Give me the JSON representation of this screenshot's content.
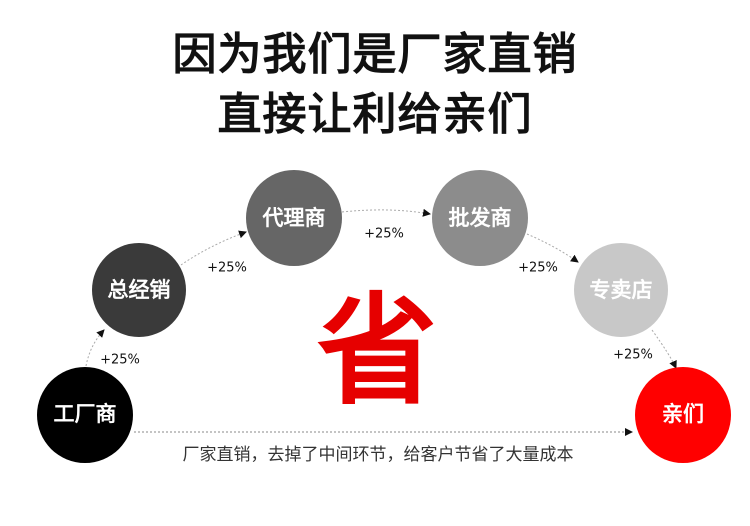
{
  "title": {
    "line1": "因为我们是厂家直销",
    "line2": "直接让利给亲们"
  },
  "nodes": [
    {
      "label": "工厂商",
      "color": "#000000"
    },
    {
      "label": "总经销",
      "color": "#3a3a3a"
    },
    {
      "label": "代理商",
      "color": "#666666"
    },
    {
      "label": "批发商",
      "color": "#8c8c8c"
    },
    {
      "label": "专卖店",
      "color": "#c8c8c8"
    },
    {
      "label": "亲们",
      "color": "#ff0000"
    }
  ],
  "markups": [
    "+25%",
    "+25%",
    "+25%",
    "+25%",
    "+25%"
  ],
  "center_char": "省",
  "direct_note": "厂家直销，去掉了中间环节，给客户节省了大量成本"
}
